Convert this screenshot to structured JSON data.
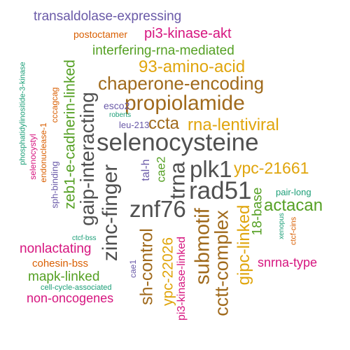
{
  "palette": {
    "purple": "#6a5aa8",
    "orange": "#d95f02",
    "magenta": "#d6157f",
    "green": "#55a024",
    "gold": "#e0a50c",
    "brown": "#a06a1c",
    "gray": "#505050",
    "teal": "#1b9e77"
  },
  "words": [
    {
      "text": "transaldolase-expressing",
      "color": "purple"
    },
    {
      "text": "postoctamer",
      "color": "orange"
    },
    {
      "text": "pi3-kinase-akt",
      "color": "magenta"
    },
    {
      "text": "interfering-rna-mediated",
      "color": "green"
    },
    {
      "text": "93-amino-acid",
      "color": "gold"
    },
    {
      "text": "chaperone-encoding",
      "color": "brown"
    },
    {
      "text": "propiolamide",
      "color": "brown"
    },
    {
      "text": "esco2",
      "color": "purple"
    },
    {
      "text": "roberts",
      "color": "teal"
    },
    {
      "text": "leu-213",
      "color": "purple"
    },
    {
      "text": "ccta",
      "color": "brown"
    },
    {
      "text": "rna-lentiviral",
      "color": "gold"
    },
    {
      "text": "selenocysteine",
      "color": "gray"
    },
    {
      "text": "plk1",
      "color": "gray"
    },
    {
      "text": "ypc-21661",
      "color": "gold"
    },
    {
      "text": "rad51",
      "color": "gray"
    },
    {
      "text": "pair-long",
      "color": "teal"
    },
    {
      "text": "znf76",
      "color": "gray"
    },
    {
      "text": "actacan",
      "color": "green"
    },
    {
      "text": "nonlactating",
      "color": "magenta"
    },
    {
      "text": "cohesin-bss",
      "color": "orange"
    },
    {
      "text": "snrna-type",
      "color": "magenta"
    },
    {
      "text": "mapk-linked",
      "color": "green"
    },
    {
      "text": "cell-cycle-associated",
      "color": "teal"
    },
    {
      "text": "non-oncogenes",
      "color": "magenta"
    },
    {
      "text": "ctcf-bss",
      "color": "teal"
    },
    {
      "text": "cae1",
      "color": "purple"
    },
    {
      "text": "phosphatidylinositide-3-kinase",
      "color": "teal"
    },
    {
      "text": "selenocystyl",
      "color": "magenta"
    },
    {
      "text": "endonuclease-1",
      "color": "orange"
    },
    {
      "text": "cccagcag",
      "color": "orange"
    },
    {
      "text": "sph-binding",
      "color": "purple"
    },
    {
      "text": "zeb1-e-cadherin-linked",
      "color": "green"
    },
    {
      "text": "gaip-interacting",
      "color": "gray"
    },
    {
      "text": "zinc-finger",
      "color": "gray"
    },
    {
      "text": "sh-control",
      "color": "brown"
    },
    {
      "text": "ypc-22026",
      "color": "gold"
    },
    {
      "text": "pi3-kinase-linked",
      "color": "magenta"
    },
    {
      "text": "tal-h",
      "color": "purple"
    },
    {
      "text": "cae2",
      "color": "green"
    },
    {
      "text": "trna",
      "color": "gray"
    },
    {
      "text": "submotif",
      "color": "brown"
    },
    {
      "text": "cctt-complex",
      "color": "brown"
    },
    {
      "text": "gipc-linked",
      "color": "gold"
    },
    {
      "text": "18-base",
      "color": "green"
    },
    {
      "text": "xenopus",
      "color": "teal"
    },
    {
      "text": "ctcf-cins",
      "color": "orange"
    }
  ]
}
